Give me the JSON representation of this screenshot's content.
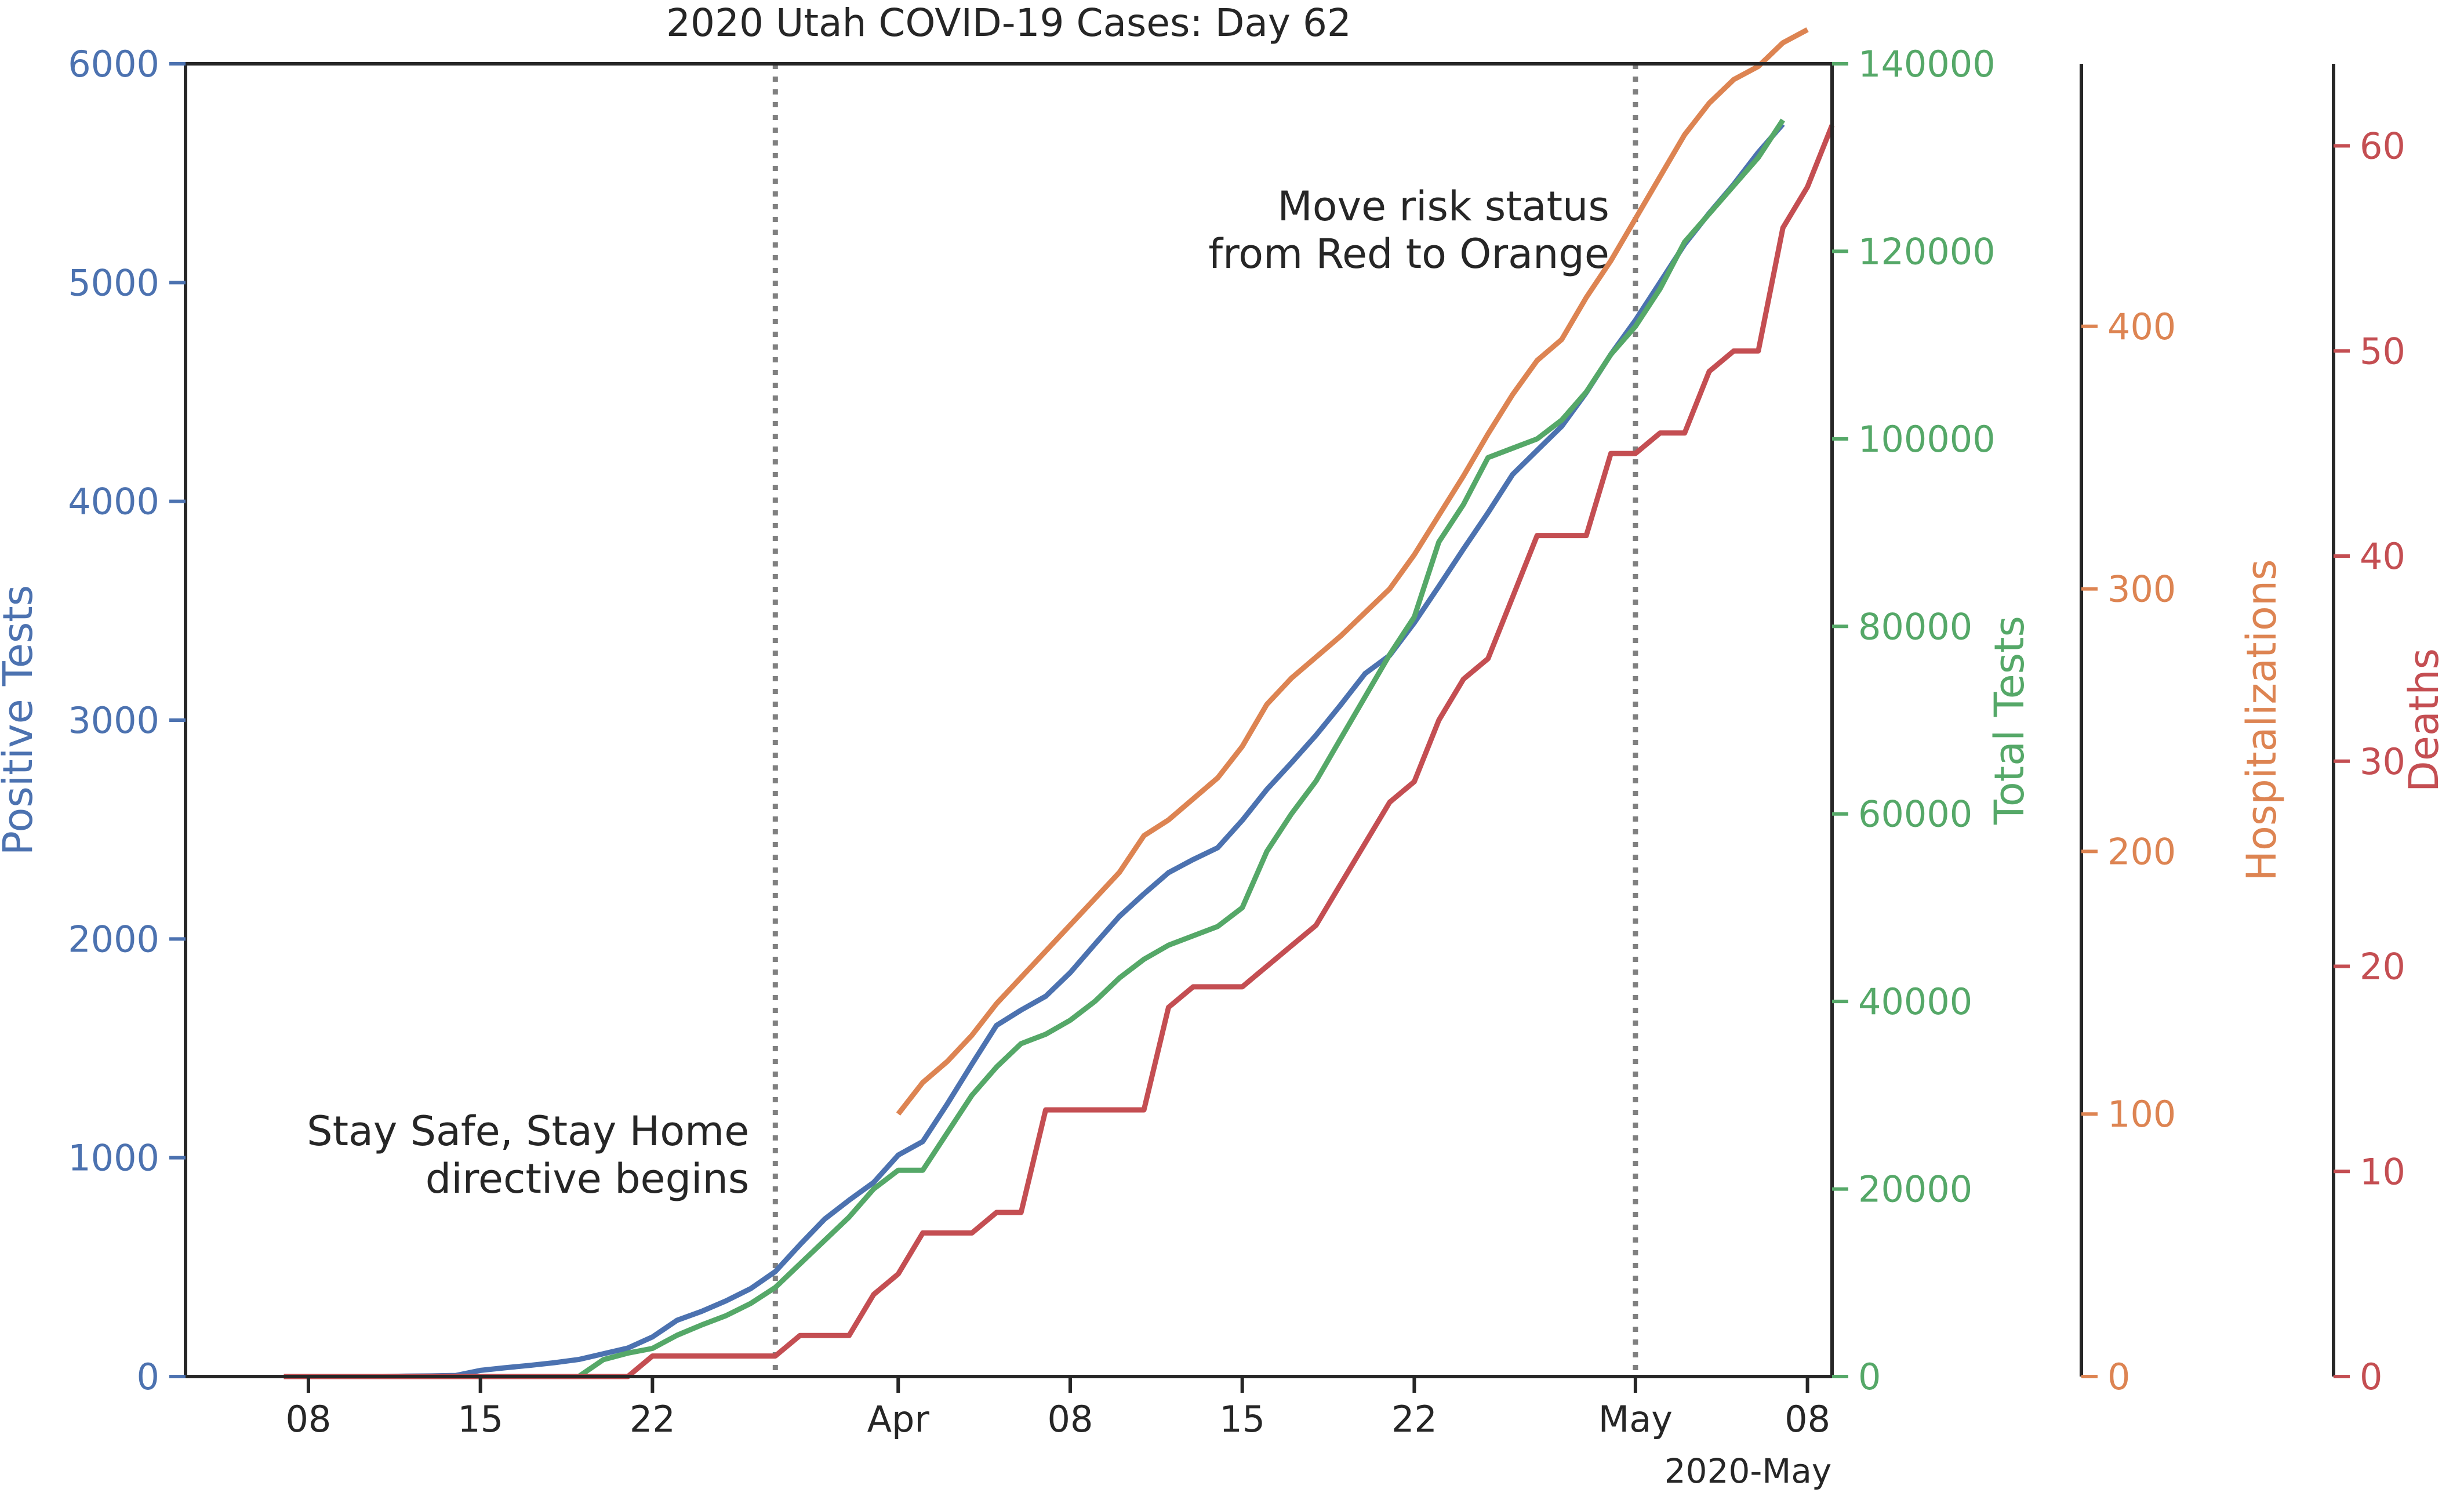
{
  "chart_data": {
    "type": "line",
    "title": "2020 Utah COVID-19 Cases: Day 62",
    "x_axis": {
      "start_date": "2020-03-03",
      "end_date": "2020-05-09",
      "ticks": [
        {
          "date": "2020-03-08",
          "label": "08"
        },
        {
          "date": "2020-03-15",
          "label": "15"
        },
        {
          "date": "2020-03-22",
          "label": "22"
        },
        {
          "date": "2020-04-01",
          "label": "Apr"
        },
        {
          "date": "2020-04-08",
          "label": "08"
        },
        {
          "date": "2020-04-15",
          "label": "15"
        },
        {
          "date": "2020-04-22",
          "label": "22"
        },
        {
          "date": "2020-05-01",
          "label": "May"
        },
        {
          "date": "2020-05-08",
          "label": "08"
        }
      ],
      "offset_label": "2020-May"
    },
    "axes": [
      {
        "id": "positive",
        "label": "Positive Tests",
        "color": "#4c72b0",
        "ylim": [
          0,
          6000
        ],
        "ticks": [
          0,
          1000,
          2000,
          3000,
          4000,
          5000,
          6000
        ]
      },
      {
        "id": "tests",
        "label": "Total Tests",
        "color": "#55a868",
        "ylim": [
          0,
          140000
        ],
        "ticks": [
          0,
          20000,
          40000,
          60000,
          80000,
          100000,
          120000,
          140000
        ]
      },
      {
        "id": "hosp",
        "label": "Hospitalizations",
        "color": "#dd8452",
        "ylim": [
          0,
          500
        ],
        "ticks": [
          0,
          100,
          200,
          300,
          400
        ]
      },
      {
        "id": "deaths",
        "label": "Deaths",
        "color": "#c44e52",
        "ylim": [
          0,
          64
        ],
        "ticks": [
          0,
          10,
          20,
          30,
          40,
          50,
          60
        ]
      }
    ],
    "series": [
      {
        "axis": "positive",
        "start_date": "2020-03-07",
        "values": [
          0,
          0,
          0,
          0,
          0,
          2,
          3,
          5,
          28,
          40,
          51,
          63,
          78,
          104,
          130,
          181,
          257,
          298,
          346,
          402,
          480,
          602,
          719,
          806,
          887,
          1012,
          1074,
          1246,
          1428,
          1605,
          1675,
          1738,
          1846,
          1976,
          2103,
          2206,
          2303,
          2363,
          2417,
          2542,
          2683,
          2805,
          2931,
          3069,
          3213,
          3296,
          3445,
          3612,
          3782,
          3948,
          4123,
          4233,
          4343,
          4497,
          4672,
          4828,
          5001,
          5175,
          5317,
          5449,
          5595,
          5724
        ]
      },
      {
        "axis": "tests",
        "start_date": "2020-03-07",
        "values": [
          0,
          0,
          0,
          0,
          0,
          0,
          0,
          0,
          0,
          0,
          0,
          0,
          0,
          1800,
          2500,
          3000,
          4400,
          5500,
          6500,
          7800,
          9500,
          12000,
          14500,
          17000,
          20000,
          22000,
          22000,
          26000,
          30000,
          33000,
          35500,
          36500,
          38000,
          40000,
          42500,
          44500,
          46000,
          47000,
          48000,
          50000,
          56000,
          60000,
          63500,
          68000,
          72500,
          77000,
          81000,
          89000,
          93000,
          98000,
          99000,
          100000,
          102000,
          105000,
          109000,
          112000,
          116000,
          121000,
          124000,
          127000,
          130000,
          134000
        ]
      },
      {
        "axis": "hosp",
        "start_date": "2020-04-01",
        "values": [
          100,
          112,
          120,
          130,
          142,
          152,
          162,
          172,
          182,
          192,
          206,
          212,
          220,
          228,
          240,
          256,
          266,
          274,
          282,
          291,
          300,
          313,
          328,
          343,
          359,
          374,
          387,
          395,
          411,
          425,
          441,
          457,
          473,
          485,
          494,
          499,
          508,
          513
        ]
      },
      {
        "axis": "deaths",
        "start_date": "2020-03-07",
        "values": [
          0,
          0,
          0,
          0,
          0,
          0,
          0,
          0,
          0,
          0,
          0,
          0,
          0,
          0,
          0,
          1,
          1,
          1,
          1,
          1,
          1,
          2,
          2,
          2,
          4,
          5,
          7,
          7,
          7,
          8,
          8,
          13,
          13,
          13,
          13,
          13,
          18,
          19,
          19,
          19,
          20,
          21,
          22,
          24,
          26,
          28,
          29,
          32,
          34,
          35,
          38,
          41,
          41,
          41,
          45,
          45,
          46,
          46,
          49,
          50,
          50,
          56,
          58,
          61
        ]
      }
    ],
    "event_lines": [
      {
        "date": "2020-03-27",
        "label_line1": "Stay Safe, Stay Home",
        "label_line2": "directive begins"
      },
      {
        "date": "2020-05-01",
        "label_line1": "Move risk status",
        "label_line2": "from Red to Orange"
      }
    ]
  }
}
